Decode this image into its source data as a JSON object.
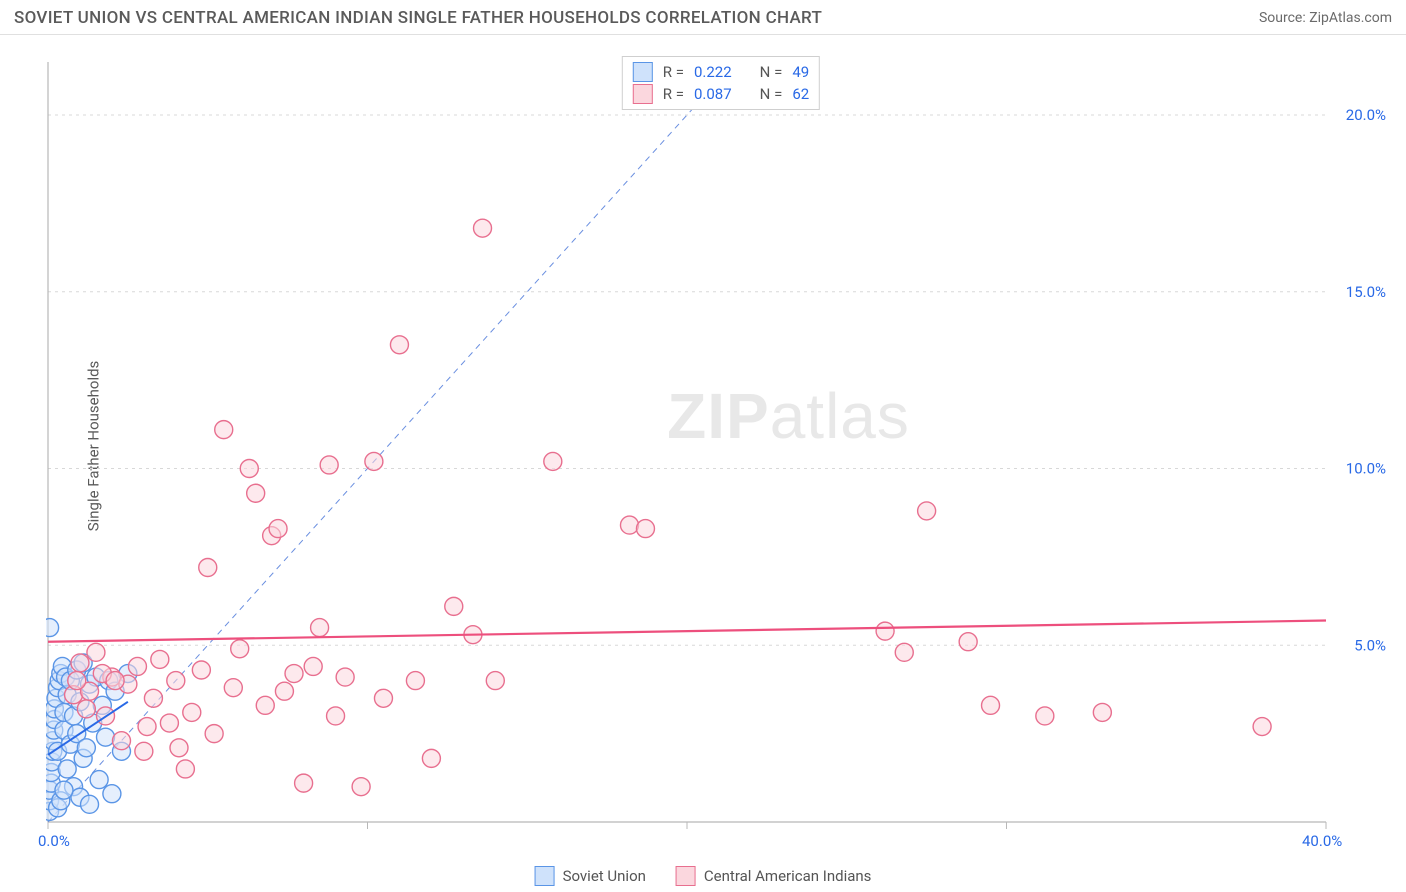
{
  "header": {
    "title": "SOVIET UNION VS CENTRAL AMERICAN INDIAN SINGLE FATHER HOUSEHOLDS CORRELATION CHART",
    "source": "Source: ZipAtlas.com"
  },
  "ylabel": "Single Father Households",
  "watermark": {
    "bold": "ZIP",
    "light": "atlas"
  },
  "legend_top": {
    "rows": [
      {
        "swatch_fill": "#cfe2fb",
        "swatch_stroke": "#5a95e6",
        "r_label": "R =",
        "r_value": "0.222",
        "n_label": "N =",
        "n_value": "49"
      },
      {
        "swatch_fill": "#fbd7de",
        "swatch_stroke": "#e86f8f",
        "r_label": "R =",
        "r_value": "0.087",
        "n_label": "N =",
        "n_value": "62"
      }
    ]
  },
  "legend_bottom": {
    "items": [
      {
        "swatch_fill": "#cfe2fb",
        "swatch_stroke": "#5a95e6",
        "label": "Soviet Union"
      },
      {
        "swatch_fill": "#fbd7de",
        "swatch_stroke": "#e86f8f",
        "label": "Central American Indians"
      }
    ]
  },
  "chart": {
    "type": "scatter",
    "xlim": [
      0,
      40
    ],
    "ylim": [
      0,
      21.5
    ],
    "x_ticks": [
      0,
      10,
      20,
      30,
      40
    ],
    "x_tick_labels": [
      "0.0%",
      "",
      "",
      "",
      "40.0%"
    ],
    "y_ticks": [
      5,
      10,
      15,
      20
    ],
    "y_tick_labels": [
      "5.0%",
      "10.0%",
      "15.0%",
      "20.0%"
    ],
    "grid_color": "#d8d8d8",
    "axis_color": "#b8b8b8",
    "background_color": "#ffffff",
    "marker_radius": 9,
    "marker_stroke_width": 1.4,
    "diag_line": {
      "x1": 0,
      "y1": 0,
      "x2": 21.5,
      "y2": 21.5,
      "color": "#6a8fe0",
      "dash": "6,5",
      "width": 1
    },
    "series": [
      {
        "name": "Soviet Union",
        "fill": "#cfe2fb",
        "stroke": "#5a95e6",
        "fill_opacity": 0.55,
        "trend": {
          "x1": 0,
          "y1": 1.9,
          "x2": 2.5,
          "y2": 3.4,
          "color": "#2969e6",
          "width": 2
        },
        "points": [
          [
            0.05,
            0.3
          ],
          [
            0.05,
            0.6
          ],
          [
            0.05,
            0.9
          ],
          [
            0.1,
            1.1
          ],
          [
            0.1,
            1.4
          ],
          [
            0.12,
            1.7
          ],
          [
            0.15,
            2.0
          ],
          [
            0.15,
            2.3
          ],
          [
            0.18,
            2.6
          ],
          [
            0.2,
            2.9
          ],
          [
            0.2,
            3.2
          ],
          [
            0.25,
            3.5
          ],
          [
            0.3,
            2.0
          ],
          [
            0.3,
            3.8
          ],
          [
            0.35,
            4.0
          ],
          [
            0.4,
            4.2
          ],
          [
            0.45,
            4.4
          ],
          [
            0.5,
            2.6
          ],
          [
            0.5,
            3.1
          ],
          [
            0.55,
            4.1
          ],
          [
            0.6,
            1.5
          ],
          [
            0.6,
            3.6
          ],
          [
            0.7,
            2.2
          ],
          [
            0.7,
            4.0
          ],
          [
            0.8,
            1.0
          ],
          [
            0.8,
            3.0
          ],
          [
            0.9,
            2.5
          ],
          [
            0.9,
            4.3
          ],
          [
            1.0,
            0.7
          ],
          [
            1.0,
            3.4
          ],
          [
            1.1,
            1.8
          ],
          [
            1.1,
            4.5
          ],
          [
            1.2,
            2.1
          ],
          [
            1.3,
            0.5
          ],
          [
            1.3,
            3.9
          ],
          [
            1.4,
            2.8
          ],
          [
            1.5,
            4.1
          ],
          [
            1.6,
            1.2
          ],
          [
            1.7,
            3.3
          ],
          [
            1.8,
            2.4
          ],
          [
            1.9,
            4.0
          ],
          [
            2.0,
            0.8
          ],
          [
            2.1,
            3.7
          ],
          [
            2.3,
            2.0
          ],
          [
            2.5,
            4.2
          ],
          [
            0.05,
            5.5
          ],
          [
            0.3,
            0.4
          ],
          [
            0.4,
            0.6
          ],
          [
            0.5,
            0.9
          ]
        ]
      },
      {
        "name": "Central American Indians",
        "fill": "#fbd7de",
        "stroke": "#e86f8f",
        "fill_opacity": 0.55,
        "trend": {
          "x1": 0,
          "y1": 5.1,
          "x2": 40,
          "y2": 5.7,
          "color": "#ed4f7d",
          "width": 2.2
        },
        "points": [
          [
            0.8,
            3.6
          ],
          [
            1.0,
            4.5
          ],
          [
            1.2,
            3.2
          ],
          [
            1.5,
            4.8
          ],
          [
            1.8,
            3.0
          ],
          [
            2.0,
            4.1
          ],
          [
            2.3,
            2.3
          ],
          [
            2.5,
            3.9
          ],
          [
            2.8,
            4.4
          ],
          [
            3.0,
            2.0
          ],
          [
            3.3,
            3.5
          ],
          [
            3.5,
            4.6
          ],
          [
            3.8,
            2.8
          ],
          [
            4.0,
            4.0
          ],
          [
            4.3,
            1.5
          ],
          [
            4.5,
            3.1
          ],
          [
            4.8,
            4.3
          ],
          [
            5.0,
            7.2
          ],
          [
            5.2,
            2.5
          ],
          [
            5.5,
            11.1
          ],
          [
            5.8,
            3.8
          ],
          [
            6.0,
            4.9
          ],
          [
            6.3,
            10.0
          ],
          [
            6.5,
            9.3
          ],
          [
            6.8,
            3.3
          ],
          [
            7.0,
            8.1
          ],
          [
            7.2,
            8.3
          ],
          [
            7.4,
            3.7
          ],
          [
            7.7,
            4.2
          ],
          [
            8.0,
            1.1
          ],
          [
            8.3,
            4.4
          ],
          [
            8.5,
            5.5
          ],
          [
            8.8,
            10.1
          ],
          [
            9.0,
            3.0
          ],
          [
            9.3,
            4.1
          ],
          [
            9.8,
            1.0
          ],
          [
            10.2,
            10.2
          ],
          [
            10.5,
            3.5
          ],
          [
            11.0,
            13.5
          ],
          [
            11.5,
            4.0
          ],
          [
            12.0,
            1.8
          ],
          [
            12.7,
            6.1
          ],
          [
            13.3,
            5.3
          ],
          [
            13.6,
            16.8
          ],
          [
            14.0,
            4.0
          ],
          [
            15.8,
            10.2
          ],
          [
            18.2,
            8.4
          ],
          [
            18.7,
            8.3
          ],
          [
            26.2,
            5.4
          ],
          [
            26.8,
            4.8
          ],
          [
            27.5,
            8.8
          ],
          [
            28.8,
            5.1
          ],
          [
            29.5,
            3.3
          ],
          [
            31.2,
            3.0
          ],
          [
            33.0,
            3.1
          ],
          [
            38.0,
            2.7
          ],
          [
            1.3,
            3.7
          ],
          [
            1.7,
            4.2
          ],
          [
            2.1,
            4.0
          ],
          [
            0.9,
            4.0
          ],
          [
            3.1,
            2.7
          ],
          [
            4.1,
            2.1
          ]
        ]
      }
    ]
  }
}
